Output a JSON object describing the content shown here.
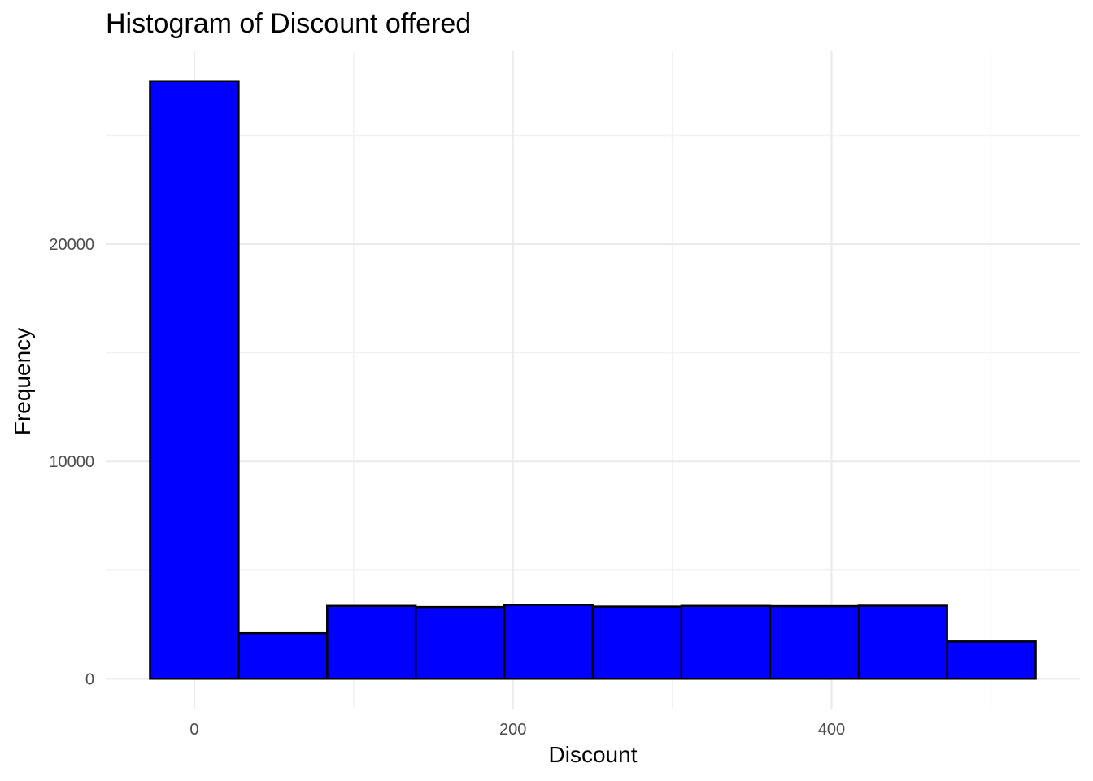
{
  "chart_data": {
    "type": "bar",
    "title": "Histogram of Discount offered",
    "xlabel": "Discount",
    "ylabel": "Frequency",
    "bar_fill": "#0000ff",
    "bar_outline": "#000000",
    "bin_width": 55.6,
    "bins": [
      {
        "x_min": -27.8,
        "x_max": 27.8,
        "count": 27500
      },
      {
        "x_min": 27.8,
        "x_max": 83.4,
        "count": 2100
      },
      {
        "x_min": 83.4,
        "x_max": 139.0,
        "count": 3350
      },
      {
        "x_min": 139.0,
        "x_max": 194.6,
        "count": 3300
      },
      {
        "x_min": 194.6,
        "x_max": 250.2,
        "count": 3400
      },
      {
        "x_min": 250.2,
        "x_max": 305.8,
        "count": 3320
      },
      {
        "x_min": 305.8,
        "x_max": 361.4,
        "count": 3350
      },
      {
        "x_min": 361.4,
        "x_max": 417.0,
        "count": 3340
      },
      {
        "x_min": 417.0,
        "x_max": 472.6,
        "count": 3360
      },
      {
        "x_min": 472.6,
        "x_max": 528.2,
        "count": 1720
      }
    ],
    "x_ticks": [
      0,
      200,
      400
    ],
    "x_minor_ticks": [
      100,
      300,
      500
    ],
    "y_ticks": [
      0,
      10000,
      20000
    ],
    "y_minor_ticks": [
      5000,
      15000,
      25000
    ],
    "xlim": [
      -55.6,
      556
    ],
    "ylim": [
      -1375,
      28875
    ],
    "grid": true,
    "legend": "none"
  }
}
